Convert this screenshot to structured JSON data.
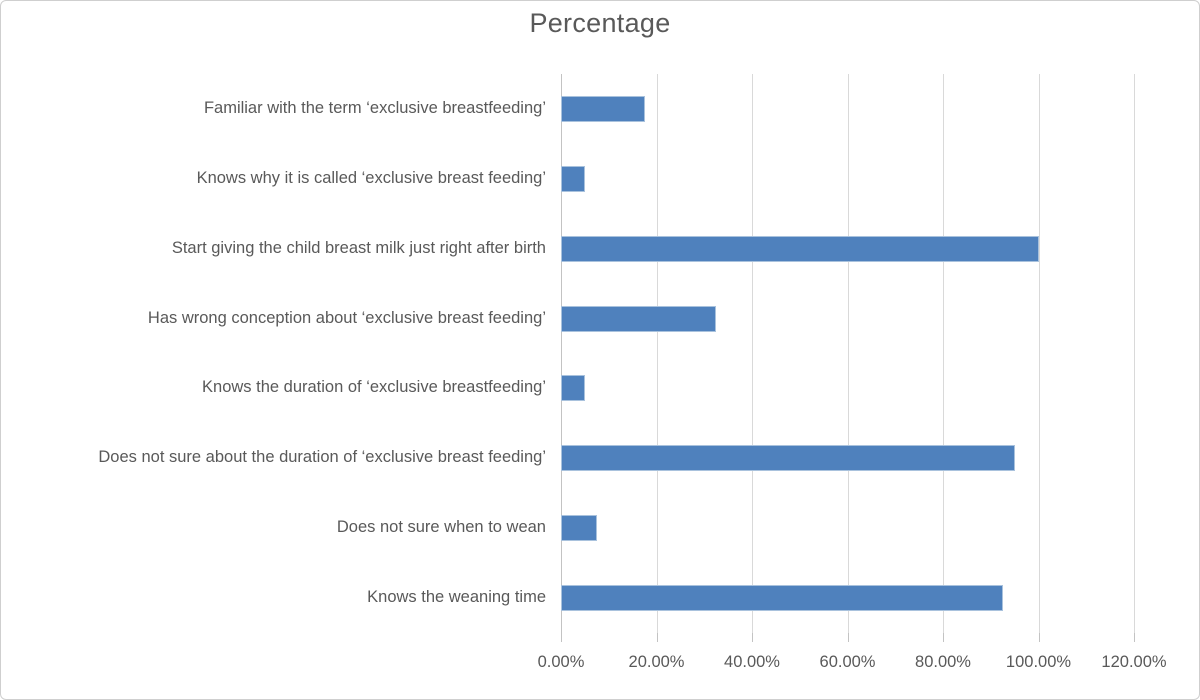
{
  "chart_data": {
    "type": "bar",
    "orientation": "horizontal",
    "title": "Percentage",
    "categories": [
      "Familiar with the term ‘exclusive breastfeeding’",
      "Knows why it is called ‘exclusive breast feeding’",
      "Start giving the child breast milk just right after birth",
      "Has wrong conception about ‘exclusive breast feeding’",
      "Knows the duration of ‘exclusive breastfeeding’",
      "Does not sure about the duration of ‘exclusive breast feeding’",
      "Does not sure when to wean",
      "Knows the weaning time"
    ],
    "values": [
      17.5,
      5,
      100,
      32.5,
      5,
      95,
      7.5,
      92.5
    ],
    "value_unit": "%",
    "xlim": [
      0,
      120
    ],
    "x_tick_values": [
      0,
      20,
      40,
      60,
      80,
      100,
      120
    ],
    "x_tick_labels": [
      "0.00%",
      "20.00%",
      "40.00%",
      "60.00%",
      "80.00%",
      "100.00%",
      "120.00%"
    ],
    "grid": "vertical",
    "legend": "none",
    "colors": {
      "bar_fill": "#4f81bd",
      "bar_border": "#a9c2dd",
      "gridline": "#d9d9d9",
      "axis_line": "#c3c3c3",
      "text": "#595959",
      "background": "#ffffff",
      "frame_border": "#cfcfcf"
    }
  }
}
